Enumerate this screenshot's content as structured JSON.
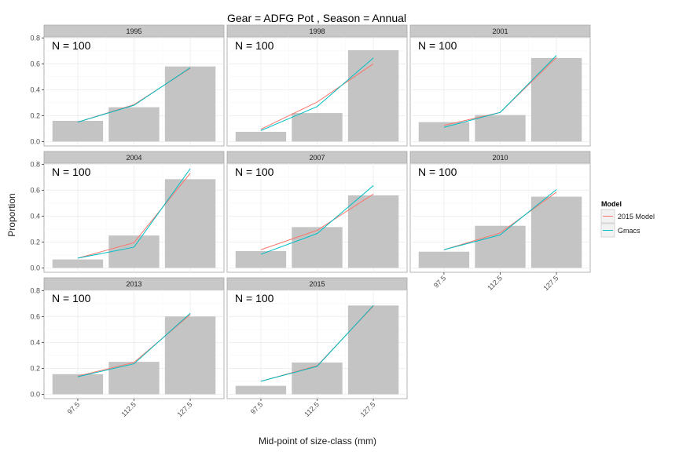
{
  "chart_data": {
    "type": "bar",
    "title": "Gear = ADFG Pot , Season = Annual",
    "xlabel": "Mid-point of size-class (mm)",
    "ylabel": "Proportion",
    "categories": [
      "97.5",
      "112.5",
      "127.5"
    ],
    "ylim": [
      0,
      0.8
    ],
    "yticks": [
      "0.0",
      "0.2",
      "0.4",
      "0.6",
      "0.8"
    ],
    "grid": true,
    "legend": {
      "title": "Model",
      "position": "right",
      "entries": [
        {
          "name": "2015 Model",
          "color": "#F8766D"
        },
        {
          "name": "Gmacs",
          "color": "#00BFC4"
        }
      ]
    },
    "panels": [
      {
        "label": "1995",
        "n_label": "N = 100",
        "observed": [
          0.16,
          0.265,
          0.58
        ],
        "model_2015": [
          0.15,
          0.285,
          0.565
        ],
        "gmacs": [
          0.15,
          0.28,
          0.57
        ]
      },
      {
        "label": "1998",
        "n_label": "N = 100",
        "observed": [
          0.075,
          0.22,
          0.705
        ],
        "model_2015": [
          0.095,
          0.305,
          0.6
        ],
        "gmacs": [
          0.085,
          0.27,
          0.645
        ]
      },
      {
        "label": "2001",
        "n_label": "N = 100",
        "observed": [
          0.15,
          0.205,
          0.645
        ],
        "model_2015": [
          0.125,
          0.225,
          0.65
        ],
        "gmacs": [
          0.11,
          0.225,
          0.665
        ]
      },
      {
        "label": "2004",
        "n_label": "N = 100",
        "observed": [
          0.065,
          0.25,
          0.685
        ],
        "model_2015": [
          0.075,
          0.195,
          0.73
        ],
        "gmacs": [
          0.075,
          0.16,
          0.765
        ]
      },
      {
        "label": "2007",
        "n_label": "N = 100",
        "observed": [
          0.13,
          0.315,
          0.56
        ],
        "model_2015": [
          0.14,
          0.29,
          0.57
        ],
        "gmacs": [
          0.105,
          0.265,
          0.635
        ]
      },
      {
        "label": "2010",
        "n_label": "N = 100",
        "observed": [
          0.125,
          0.325,
          0.55
        ],
        "model_2015": [
          0.14,
          0.27,
          0.585
        ],
        "gmacs": [
          0.14,
          0.255,
          0.605
        ]
      },
      {
        "label": "2013",
        "n_label": "N = 100",
        "observed": [
          0.155,
          0.25,
          0.6
        ],
        "model_2015": [
          0.14,
          0.245,
          0.615
        ],
        "gmacs": [
          0.135,
          0.235,
          0.625
        ]
      },
      {
        "label": "2015",
        "n_label": "N = 100",
        "observed": [
          0.065,
          0.245,
          0.685
        ],
        "model_2015": [
          0.1,
          0.22,
          0.68
        ],
        "gmacs": [
          0.1,
          0.215,
          0.685
        ]
      }
    ]
  }
}
